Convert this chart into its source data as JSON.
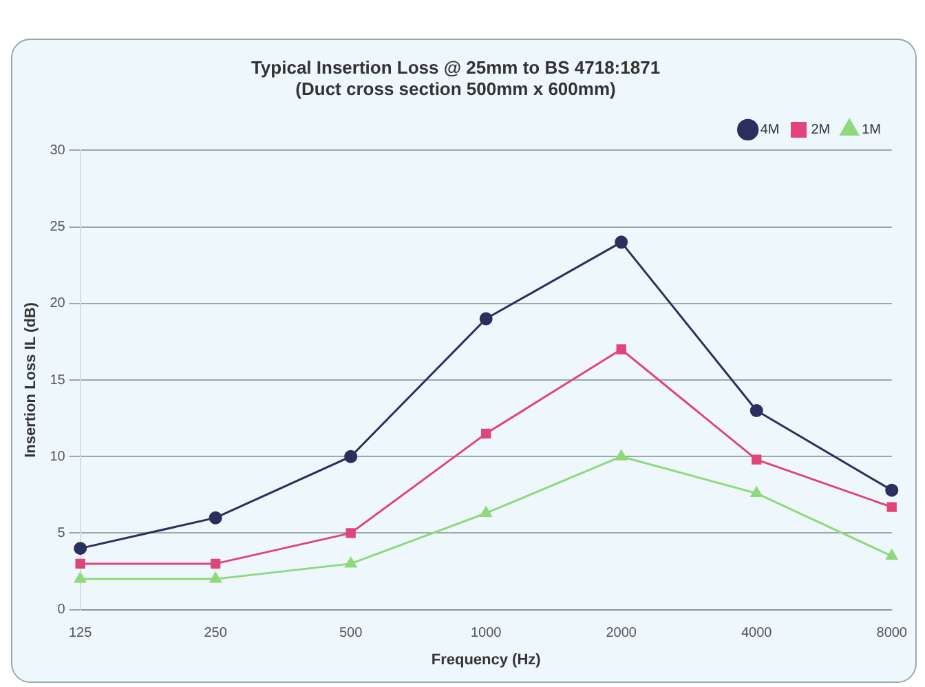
{
  "chart_data": {
    "type": "line",
    "title": [
      "Typical Insertion Loss @ 25mm to BS 4718:1871",
      "(Duct cross section 500mm x 600mm)"
    ],
    "xlabel": "Frequency (Hz)",
    "ylabel": "Insertion Loss IL (dB)",
    "categories": [
      "125",
      "250",
      "500",
      "1000",
      "2000",
      "4000",
      "8000"
    ],
    "series": [
      {
        "name": "4M",
        "color": "#2b2f5e",
        "marker": "circle",
        "values": [
          4,
          6,
          10,
          19,
          24,
          13,
          7.8
        ]
      },
      {
        "name": "2M",
        "color": "#e0457a",
        "marker": "square",
        "values": [
          3,
          3,
          5,
          11.5,
          17,
          9.8,
          6.7
        ]
      },
      {
        "name": "1M",
        "color": "#8fd97a",
        "marker": "triangle",
        "values": [
          2,
          2,
          3,
          6.3,
          10,
          7.6,
          3.5
        ]
      }
    ],
    "ylim": [
      0,
      30
    ],
    "yticks": [
      0,
      5,
      10,
      15,
      20,
      25,
      30
    ],
    "grid": "y",
    "legend": "top right"
  }
}
